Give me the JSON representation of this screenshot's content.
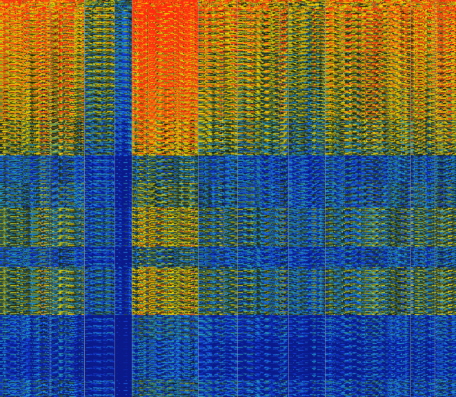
{
  "chart_data": {
    "type": "heatmap",
    "title": "",
    "xlabel": "",
    "ylabel": "",
    "legend": "none",
    "grid": true,
    "grid_color": "#9aa0a8",
    "colormap": [
      "#0a1a8a",
      "#1540e0",
      "#1fa0d0",
      "#2a5a4a",
      "#101808",
      "#8a8a10",
      "#f0e000",
      "#f07010",
      "#ff2a10"
    ],
    "columns": [
      {
        "name": "",
        "group_level_offset": 0.0
      },
      {
        "name": "",
        "group_level_offset": -0.05
      },
      {
        "name": "",
        "group_level_offset": -0.35
      },
      {
        "name": "",
        "group_level_offset": -0.55
      },
      {
        "name": "",
        "group_level_offset": 0.15
      },
      {
        "name": "",
        "group_level_offset": -0.1
      },
      {
        "name": "",
        "group_level_offset": -0.15
      },
      {
        "name": "",
        "group_level_offset": -0.25
      },
      {
        "name": "",
        "group_level_offset": -0.1
      },
      {
        "name": "",
        "group_level_offset": -0.05
      },
      {
        "name": "",
        "group_level_offset": -0.05
      }
    ],
    "row_clusters": [
      {
        "level": 0.92,
        "share": 0.05
      },
      {
        "level": 0.86,
        "share": 0.08
      },
      {
        "level": 0.8,
        "share": 0.09
      },
      {
        "level": 0.74,
        "share": 0.08
      },
      {
        "level": 0.66,
        "share": 0.06
      },
      {
        "level": 0.6,
        "share": 0.03
      },
      {
        "level": 0.3,
        "share": 0.07
      },
      {
        "level": 0.38,
        "share": 0.06
      },
      {
        "level": 0.5,
        "share": 0.1
      },
      {
        "level": 0.28,
        "share": 0.05
      },
      {
        "level": 0.52,
        "share": 0.12
      },
      {
        "level": 0.18,
        "share": 0.06
      },
      {
        "level": 0.08,
        "share": 0.1
      },
      {
        "level": 0.22,
        "share": 0.05
      }
    ]
  }
}
